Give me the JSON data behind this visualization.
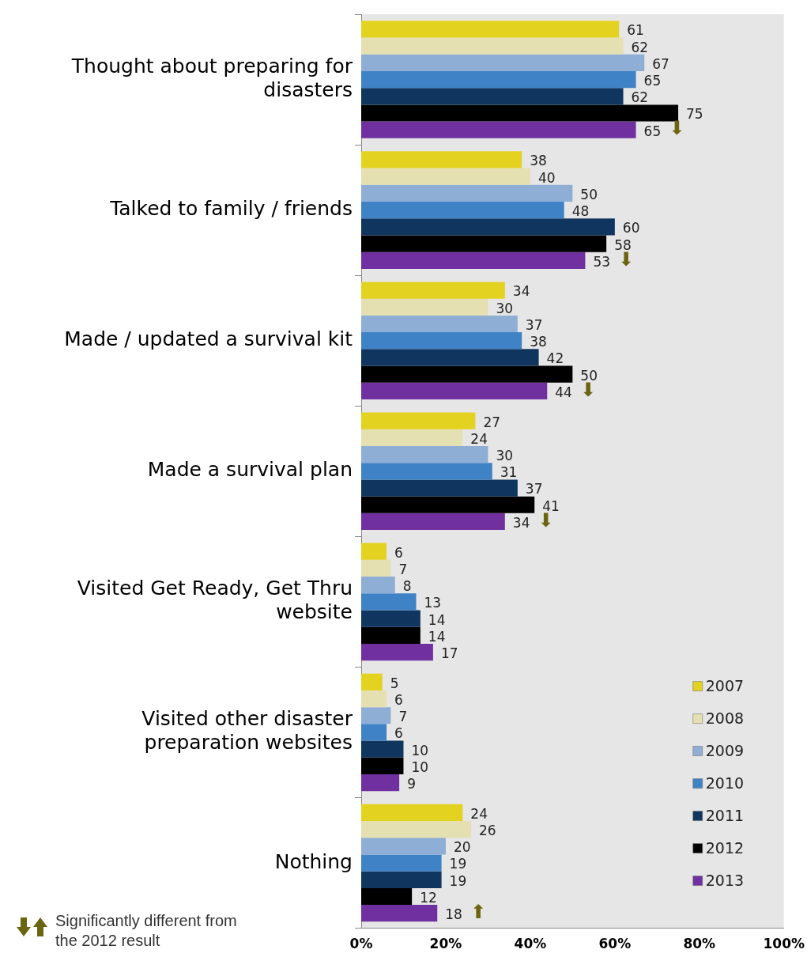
{
  "chart_data": {
    "type": "bar",
    "orientation": "horizontal",
    "categories": [
      "Thought about preparing for disasters",
      "Talked to family / friends",
      "Made / updated a survival kit",
      "Made a survival plan",
      "Visited Get Ready, Get Thru website",
      "Visited other disaster preparation websites",
      "Nothing"
    ],
    "series": [
      {
        "name": "2007",
        "color": "#e3d21f",
        "values": [
          61,
          38,
          34,
          27,
          6,
          5,
          24
        ]
      },
      {
        "name": "2008",
        "color": "#e4e0b2",
        "values": [
          62,
          40,
          30,
          24,
          7,
          6,
          26
        ]
      },
      {
        "name": "2009",
        "color": "#8eaed6",
        "values": [
          67,
          50,
          37,
          30,
          8,
          7,
          20
        ]
      },
      {
        "name": "2010",
        "color": "#3f83c6",
        "values": [
          65,
          48,
          38,
          31,
          13,
          6,
          19
        ]
      },
      {
        "name": "2011",
        "color": "#10355e",
        "values": [
          62,
          60,
          42,
          37,
          14,
          10,
          19
        ]
      },
      {
        "name": "2012",
        "color": "#000000",
        "values": [
          75,
          58,
          50,
          41,
          14,
          10,
          12
        ]
      },
      {
        "name": "2013",
        "color": "#7030a0",
        "values": [
          65,
          53,
          44,
          34,
          17,
          9,
          18
        ],
        "value_labels": [
          "65 ⬇",
          "53 ⬇",
          "44 ⬇",
          "34 ⬇",
          "17",
          "9",
          "18 ⬆"
        ]
      }
    ],
    "xlim": [
      0,
      100
    ],
    "xticks": [
      {
        "value": 0,
        "label": "0%"
      },
      {
        "value": 20,
        "label": "20%"
      },
      {
        "value": 40,
        "label": "40%"
      },
      {
        "value": 60,
        "label": "60%"
      },
      {
        "value": 80,
        "label": "80%"
      },
      {
        "value": 100,
        "label": "100%"
      }
    ],
    "data_labels": true,
    "legend": "bottom right",
    "grid": false,
    "annotations": [
      "Significantly different from the 2012 result"
    ]
  }
}
